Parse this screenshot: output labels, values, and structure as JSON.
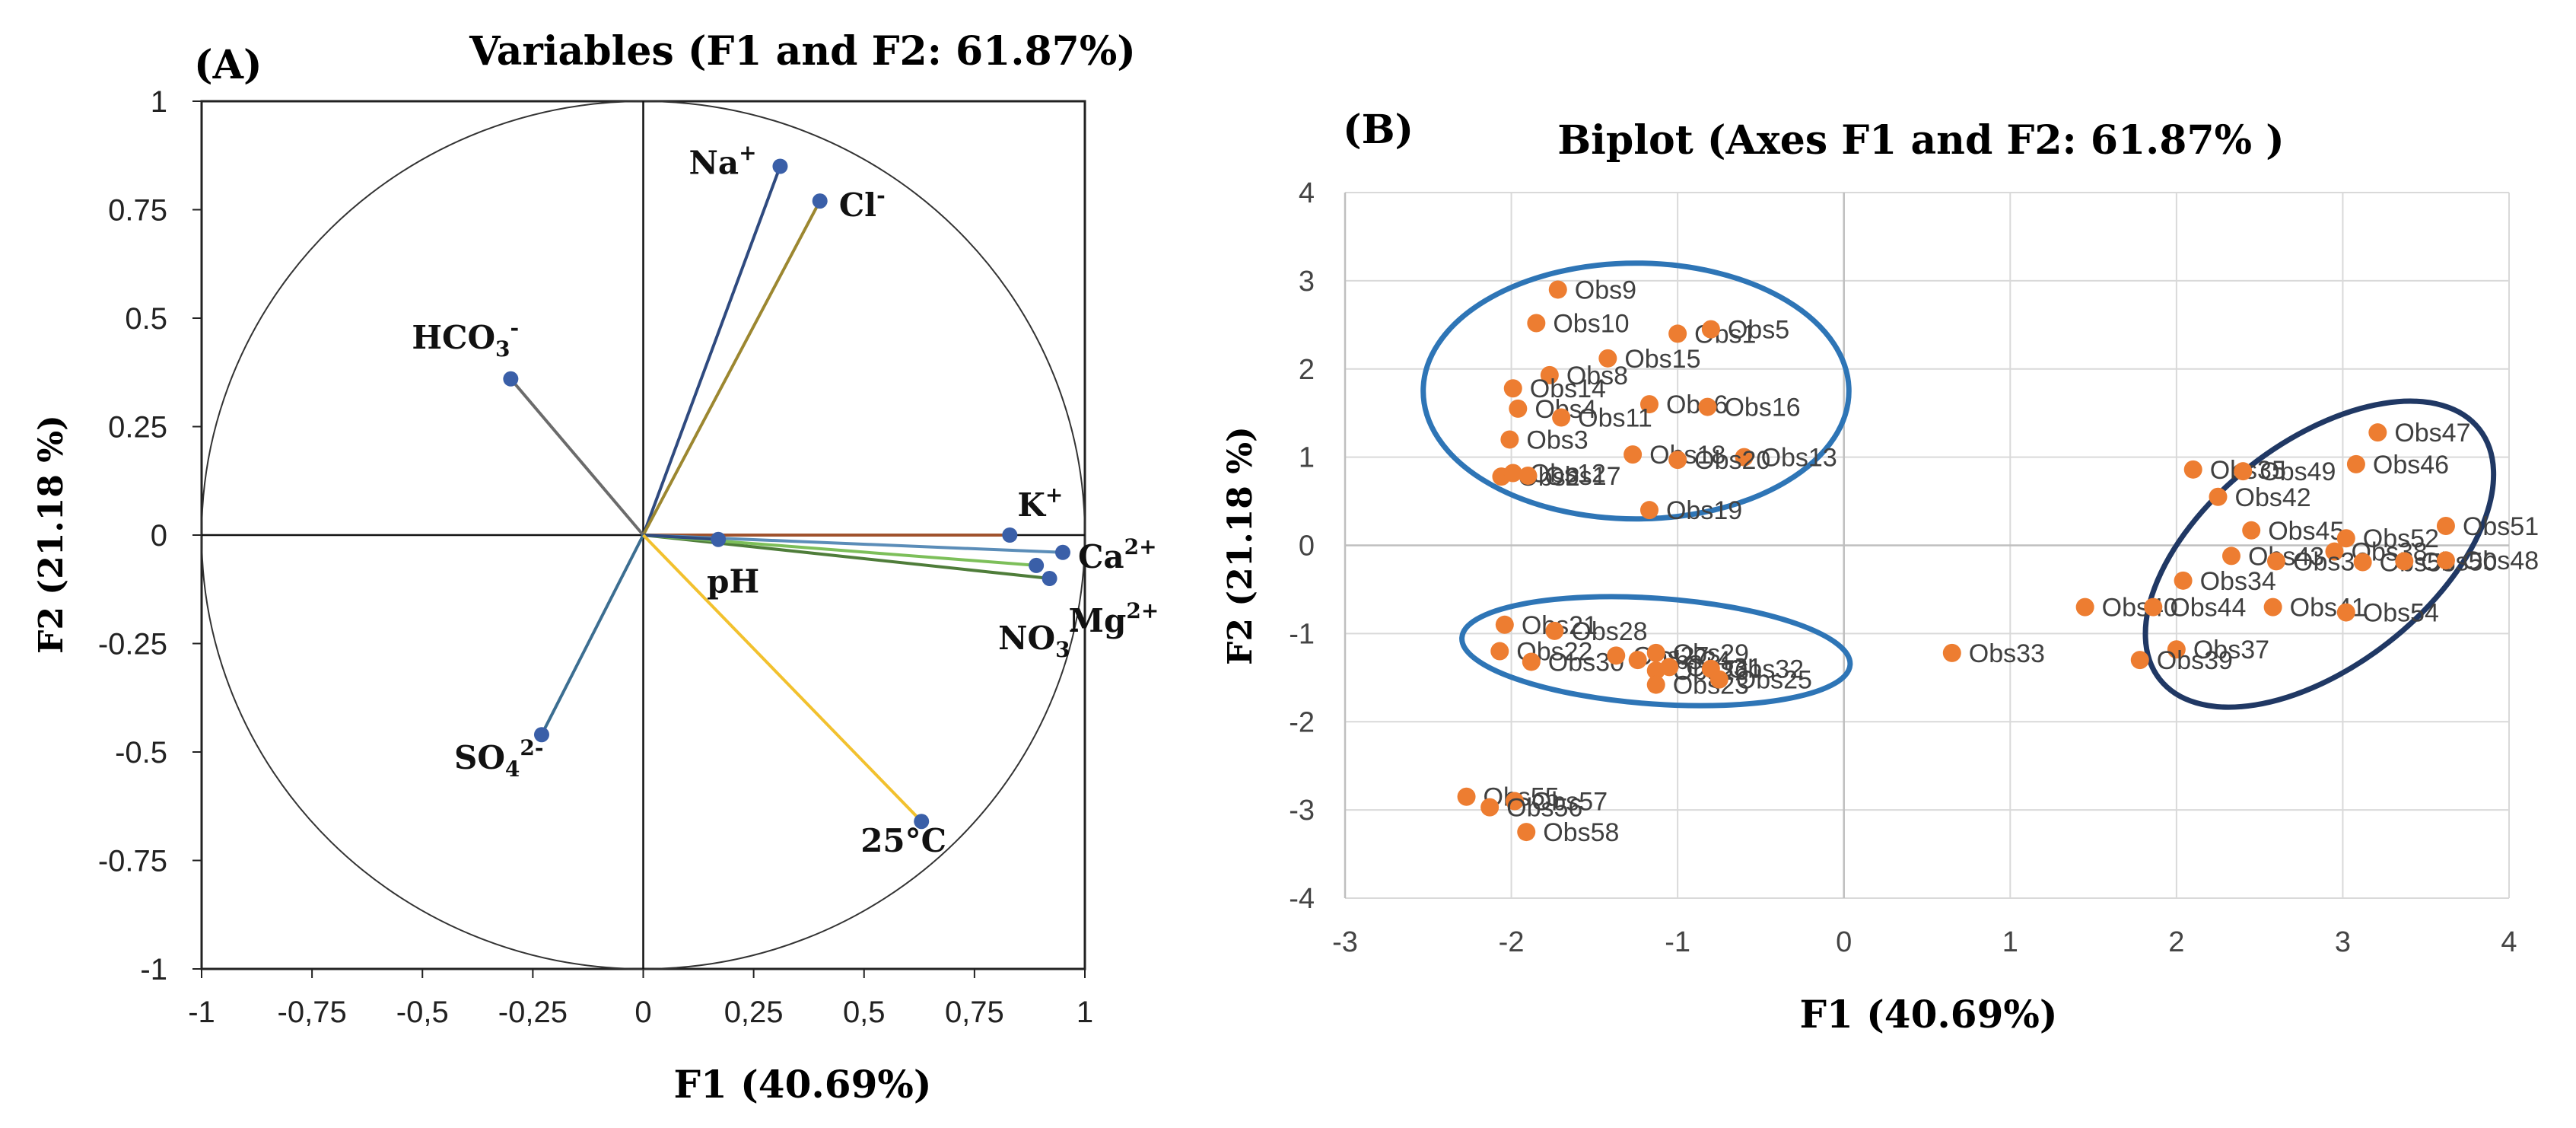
{
  "chart_data": [
    {
      "panel_label": "(A)",
      "type": "scatter",
      "subtype": "correlation-circle",
      "title": "Variables (F1 and F2: 61.87%)",
      "xlabel": "F1 (40.69%)",
      "ylabel": "F2 (21.18 %)",
      "xlim": [
        -1,
        1
      ],
      "ylim": [
        -1,
        1
      ],
      "xticks": [
        "-1",
        "-0,75",
        "-0,5",
        "-0,25",
        "0",
        "0,25",
        "0,5",
        "0,75",
        "1"
      ],
      "yticks": [
        "1",
        "0.75",
        "0.5",
        "0.25",
        "0",
        "-0.25",
        "-0.5",
        "-0.75",
        "-1"
      ],
      "variables": [
        {
          "id": "na",
          "base": "Na",
          "sup": "+",
          "sub": "",
          "x": 0.31,
          "y": 0.85,
          "color": "#2f4a7f"
        },
        {
          "id": "cl",
          "base": "Cl",
          "sup": "-",
          "sub": "",
          "x": 0.4,
          "y": 0.77,
          "color": "#9c8730"
        },
        {
          "id": "hco3",
          "base": "HCO",
          "sup": "-",
          "sub": "3",
          "x": -0.3,
          "y": 0.36,
          "color": "#6b6b6b"
        },
        {
          "id": "k",
          "base": "K",
          "sup": "+",
          "sub": "",
          "x": 0.83,
          "y": 0.0,
          "color": "#a0522d"
        },
        {
          "id": "ca",
          "base": "Ca",
          "sup": "2+",
          "sub": "",
          "x": 0.95,
          "y": -0.04,
          "color": "#5b8db8"
        },
        {
          "id": "mg",
          "base": "Mg",
          "sup": "2+",
          "sub": "",
          "x": 0.92,
          "y": -0.1,
          "color": "#4f7d3a"
        },
        {
          "id": "no3",
          "base": "NO",
          "sup": "-",
          "sub": "3",
          "x": 0.89,
          "y": -0.07,
          "color": "#7dbf5a"
        },
        {
          "id": "ph",
          "base": "pH",
          "sup": "",
          "sub": "",
          "x": 0.17,
          "y": -0.01,
          "color": "#2f4a7f"
        },
        {
          "id": "so4",
          "base": "SO",
          "sup": "2-",
          "sub": "4",
          "x": -0.23,
          "y": -0.46,
          "color": "#3c6e91"
        },
        {
          "id": "t25",
          "base": "25°C",
          "sup": "",
          "sub": "",
          "x": 0.63,
          "y": -0.66,
          "color": "#f2c12e"
        }
      ]
    },
    {
      "panel_label": "(B)",
      "type": "scatter",
      "title": "Biplot (Axes F1 and F2: 61.87% )",
      "xlabel": "F1 (40.69%)",
      "ylabel": "F2 (21.18 %)",
      "xlim": [
        -3,
        4
      ],
      "ylim": [
        -4,
        4
      ],
      "xticks": [
        "-3",
        "-2",
        "-1",
        "0",
        "1",
        "2",
        "3",
        "4"
      ],
      "yticks": [
        "4",
        "3",
        "2",
        "1",
        "0",
        "-1",
        "-2",
        "-3",
        "-4"
      ],
      "grid": true,
      "marker_color": "#ed7d31",
      "ellipse_colors": [
        "#2e75b6",
        "#2e75b6",
        "#203864"
      ],
      "points": [
        {
          "label": "Obs9",
          "x": -1.72,
          "y": 2.9
        },
        {
          "label": "Obs10",
          "x": -1.85,
          "y": 2.52
        },
        {
          "label": "Obs1",
          "x": -1.0,
          "y": 2.4
        },
        {
          "label": "Obs5",
          "x": -0.8,
          "y": 2.45
        },
        {
          "label": "Obs15",
          "x": -1.42,
          "y": 2.12
        },
        {
          "label": "Obs8",
          "x": -1.77,
          "y": 1.93
        },
        {
          "label": "Obs14",
          "x": -1.99,
          "y": 1.78
        },
        {
          "label": "Obs6",
          "x": -1.17,
          "y": 1.6
        },
        {
          "label": "Obs16",
          "x": -0.82,
          "y": 1.57
        },
        {
          "label": "Obs4",
          "x": -1.96,
          "y": 1.55
        },
        {
          "label": "Obs11",
          "x": -1.7,
          "y": 1.45
        },
        {
          "label": "Obs3",
          "x": -2.01,
          "y": 1.2
        },
        {
          "label": "Obs18",
          "x": -1.27,
          "y": 1.03
        },
        {
          "label": "Obs13",
          "x": -0.6,
          "y": 1.0
        },
        {
          "label": "Obs20",
          "x": -1.0,
          "y": 0.97
        },
        {
          "label": "Obs2",
          "x": -2.06,
          "y": 0.78
        },
        {
          "label": "Obs12",
          "x": -1.99,
          "y": 0.82
        },
        {
          "label": "Obs17",
          "x": -1.9,
          "y": 0.79
        },
        {
          "label": "Obs19",
          "x": -1.17,
          "y": 0.4
        },
        {
          "label": "Obs21",
          "x": -2.04,
          "y": -0.9
        },
        {
          "label": "Obs28",
          "x": -1.74,
          "y": -0.97
        },
        {
          "label": "Obs22",
          "x": -2.07,
          "y": -1.2
        },
        {
          "label": "Obs30",
          "x": -1.88,
          "y": -1.32
        },
        {
          "label": "Obs27",
          "x": -1.37,
          "y": -1.25
        },
        {
          "label": "Obs24",
          "x": -1.24,
          "y": -1.3
        },
        {
          "label": "Obs29",
          "x": -1.13,
          "y": -1.22
        },
        {
          "label": "Obs26",
          "x": -1.13,
          "y": -1.42
        },
        {
          "label": "Obs31",
          "x": -1.05,
          "y": -1.38
        },
        {
          "label": "Obs32",
          "x": -0.8,
          "y": -1.4
        },
        {
          "label": "Obs23",
          "x": -1.13,
          "y": -1.58
        },
        {
          "label": "Obs25",
          "x": -0.75,
          "y": -1.52
        },
        {
          "label": "Obs33",
          "x": 0.65,
          "y": -1.22
        },
        {
          "label": "Obs47",
          "x": 3.21,
          "y": 1.28
        },
        {
          "label": "Obs46",
          "x": 3.08,
          "y": 0.92
        },
        {
          "label": "Obs35",
          "x": 2.1,
          "y": 0.86
        },
        {
          "label": "Obs49",
          "x": 2.4,
          "y": 0.84
        },
        {
          "label": "Obs42",
          "x": 2.25,
          "y": 0.55
        },
        {
          "label": "Obs45",
          "x": 2.45,
          "y": 0.17
        },
        {
          "label": "Obs51",
          "x": 3.62,
          "y": 0.22
        },
        {
          "label": "Obs52",
          "x": 3.02,
          "y": 0.08
        },
        {
          "label": "Obs38",
          "x": 2.95,
          "y": -0.07
        },
        {
          "label": "Obs43",
          "x": 2.33,
          "y": -0.12
        },
        {
          "label": "Obs36",
          "x": 2.6,
          "y": -0.18
        },
        {
          "label": "Obs53",
          "x": 3.12,
          "y": -0.19
        },
        {
          "label": "Obs50",
          "x": 3.37,
          "y": -0.18
        },
        {
          "label": "Obs48",
          "x": 3.62,
          "y": -0.17
        },
        {
          "label": "Obs34",
          "x": 2.04,
          "y": -0.4
        },
        {
          "label": "Obs40",
          "x": 1.45,
          "y": -0.7
        },
        {
          "label": "Obs44",
          "x": 1.86,
          "y": -0.7
        },
        {
          "label": "Obs41",
          "x": 2.58,
          "y": -0.7
        },
        {
          "label": "Obs54",
          "x": 3.02,
          "y": -0.76
        },
        {
          "label": "Obs37",
          "x": 2.0,
          "y": -1.18
        },
        {
          "label": "Obs39",
          "x": 1.78,
          "y": -1.3
        },
        {
          "label": "Obs55",
          "x": -2.27,
          "y": -2.85
        },
        {
          "label": "Obs57",
          "x": -1.98,
          "y": -2.9
        },
        {
          "label": "Obs56",
          "x": -2.13,
          "y": -2.97
        },
        {
          "label": "Obs58",
          "x": -1.91,
          "y": -3.25
        }
      ]
    }
  ]
}
